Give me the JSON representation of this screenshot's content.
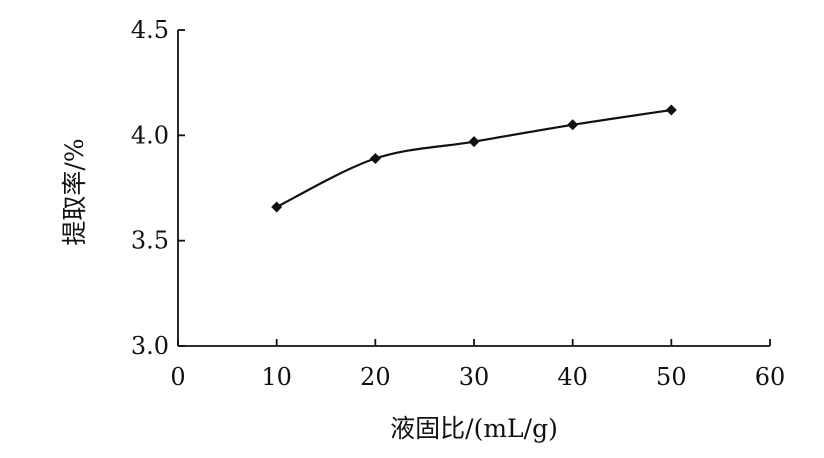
{
  "chart_data": {
    "type": "line",
    "title": "",
    "xlabel": "液固比/(mL/g)",
    "ylabel": "提取率/%",
    "xlim": [
      0,
      60
    ],
    "ylim": [
      3.0,
      4.5
    ],
    "x_ticks": [
      "0",
      "10",
      "20",
      "30",
      "40",
      "50",
      "60"
    ],
    "y_ticks": [
      "3.0",
      "3.5",
      "4.0",
      "4.5"
    ],
    "grid": false,
    "legend": "none",
    "series": [
      {
        "marker": "diamond",
        "color": "#111111",
        "x": [
          10,
          20,
          30,
          40,
          50
        ],
        "y": [
          3.66,
          3.89,
          3.97,
          4.05,
          4.12
        ]
      }
    ]
  }
}
